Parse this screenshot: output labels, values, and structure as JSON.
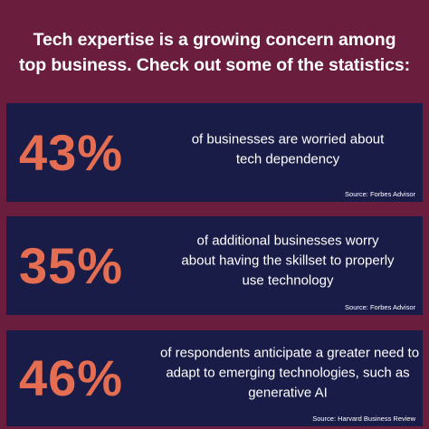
{
  "headline": {
    "line1": "Tech expertise is a growing concern among",
    "line2": "top business. Check out some of the statistics:"
  },
  "stats": [
    {
      "value": "43%",
      "lines": [
        "of businesses are worried about",
        "tech dependency"
      ],
      "source": "Source: Forbes Advisor"
    },
    {
      "value": "35%",
      "lines": [
        "of additional businesses worry",
        "about having the skillset to properly",
        "use technology"
      ],
      "source": "Source: Forbes Advisor"
    },
    {
      "value": "46%",
      "lines": [
        "of respondents anticipate a greater need to",
        "adapt to emerging technologies, such as",
        "generative AI"
      ],
      "source": "Source: Harvard Business Review"
    }
  ],
  "colors": {
    "background": "#6b1d3e",
    "panel": "#1a1c48",
    "accent": "#e56e52",
    "text": "#ffffff"
  }
}
